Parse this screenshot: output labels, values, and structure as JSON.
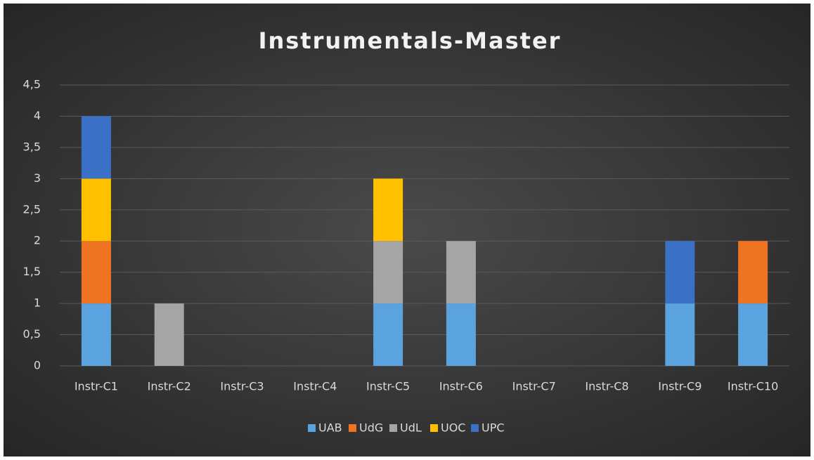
{
  "chart_data": {
    "type": "stacked_bar",
    "title": "Instrumentals-Master",
    "categories": [
      "Instr-C1",
      "Instr-C2",
      "Instr-C3",
      "Instr-C4",
      "Instr-C5",
      "Instr-C6",
      "Instr-C7",
      "Instr-C8",
      "Instr-C9",
      "Instr-C10"
    ],
    "series": [
      {
        "name": "UAB",
        "color": "#5ba3de",
        "values": [
          1,
          0,
          0,
          0,
          1,
          1,
          0,
          0,
          1,
          1
        ]
      },
      {
        "name": "UdG",
        "color": "#ee7424",
        "values": [
          1,
          0,
          0,
          0,
          0,
          0,
          0,
          0,
          0,
          1
        ]
      },
      {
        "name": "UdL",
        "color": "#a5a5a5",
        "values": [
          0,
          1,
          0,
          0,
          1,
          1,
          0,
          0,
          0,
          0
        ]
      },
      {
        "name": "UOC",
        "color": "#ffc000",
        "values": [
          1,
          0,
          0,
          0,
          1,
          0,
          0,
          0,
          0,
          0
        ]
      },
      {
        "name": "UPC",
        "color": "#3a70c6",
        "values": [
          1,
          0,
          0,
          0,
          0,
          0,
          0,
          0,
          1,
          0
        ]
      }
    ],
    "ylim": [
      0,
      4.5
    ],
    "yticks": [
      0,
      {
        "value": 0.5,
        "label": "0,5"
      },
      1,
      {
        "value": 1.5,
        "label": "1,5"
      },
      2,
      {
        "value": 2.5,
        "label": "2,5"
      },
      3,
      {
        "value": 3.5,
        "label": "3,5"
      },
      4,
      {
        "value": 4.5,
        "label": "4,5"
      }
    ],
    "grid": true,
    "legend": "bottom"
  }
}
